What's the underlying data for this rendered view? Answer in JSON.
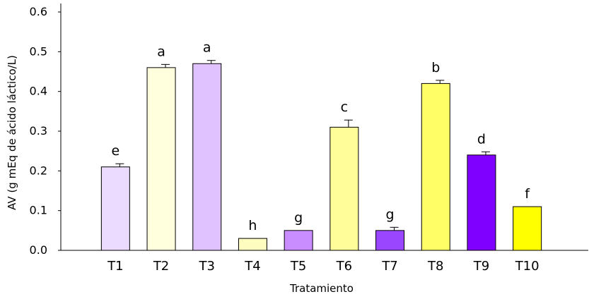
{
  "chart_data": {
    "type": "bar",
    "xlabel": "Tratamiento",
    "ylabel": "AV (g mEq de ácido láctico/L)",
    "ylim": [
      0,
      0.6
    ],
    "yticks": [
      "0.0",
      "0.1",
      "0.2",
      "0.3",
      "0.4",
      "0.5",
      "0.6"
    ],
    "grid": false,
    "categories": [
      "T1",
      "T2",
      "T3",
      "T4",
      "T5",
      "T6",
      "T7",
      "T8",
      "T9",
      "T10"
    ],
    "values": [
      0.21,
      0.46,
      0.47,
      0.03,
      0.05,
      0.31,
      0.05,
      0.42,
      0.24,
      0.11
    ],
    "errors": [
      0.008,
      0.008,
      0.008,
      0.0,
      0.0,
      0.018,
      0.008,
      0.008,
      0.008,
      0.0
    ],
    "significance_letters": [
      "e",
      "a",
      "a",
      "h",
      "g",
      "c",
      "g",
      "b",
      "d",
      "f"
    ],
    "colors": [
      "#ebdcff",
      "#fffedd",
      "#dfc2ff",
      "#fffcc0",
      "#c98dff",
      "#fffd99",
      "#9a46ff",
      "#fffe66",
      "#8000ff",
      "#ffff00"
    ]
  }
}
